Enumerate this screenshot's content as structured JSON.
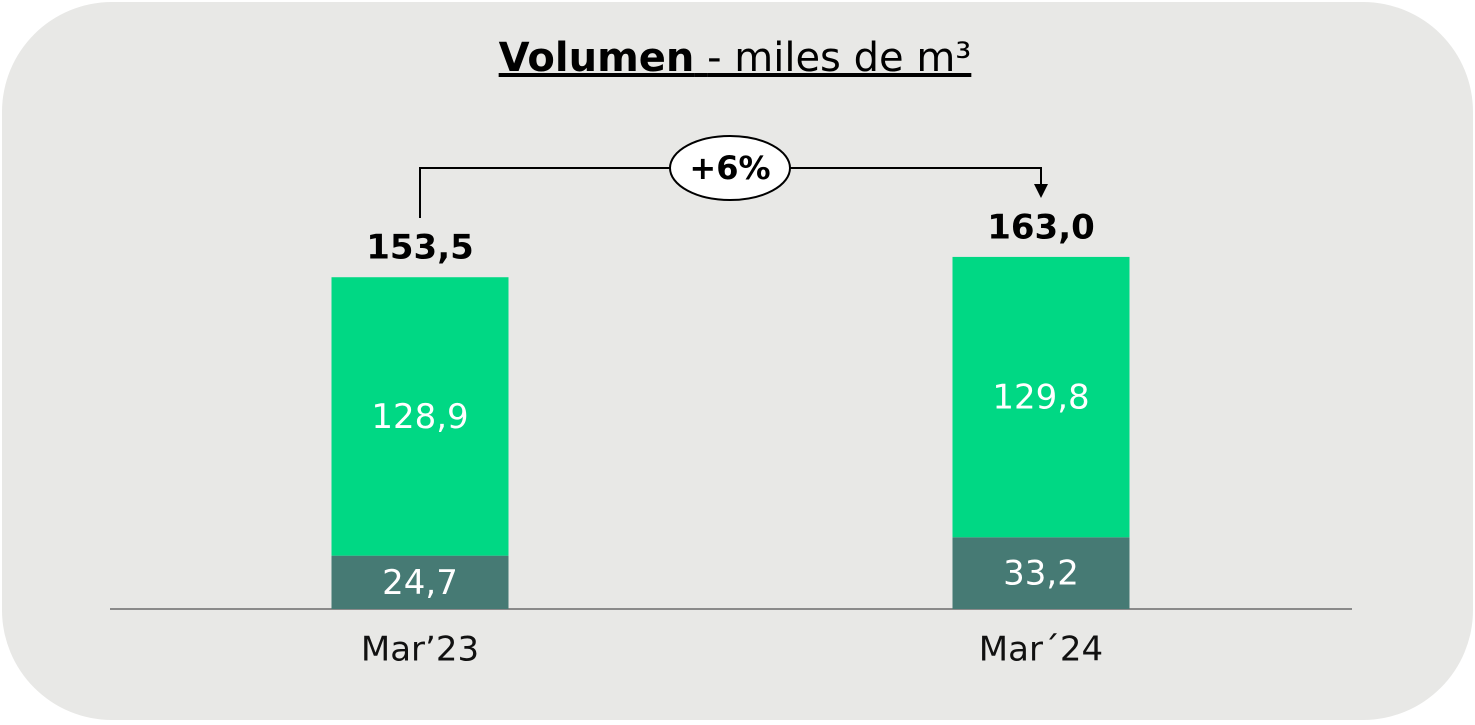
{
  "chart_data": {
    "type": "stacked_bar",
    "title": "Volumen",
    "subtitle": "- miles de m³",
    "categories": [
      "Mar’23",
      "Mar´24"
    ],
    "series": [
      {
        "color": "#467a74",
        "values": [
          24.7,
          33.2
        ],
        "value_labels": [
          "24,7",
          "33,2"
        ]
      },
      {
        "color": "#00d884",
        "values": [
          128.9,
          129.8
        ],
        "value_labels": [
          "128,9",
          "129,8"
        ]
      }
    ],
    "totals": {
      "values": [
        153.5,
        163.0
      ],
      "value_labels": [
        "153,5",
        "163,0"
      ]
    },
    "annotation": "+6%"
  }
}
